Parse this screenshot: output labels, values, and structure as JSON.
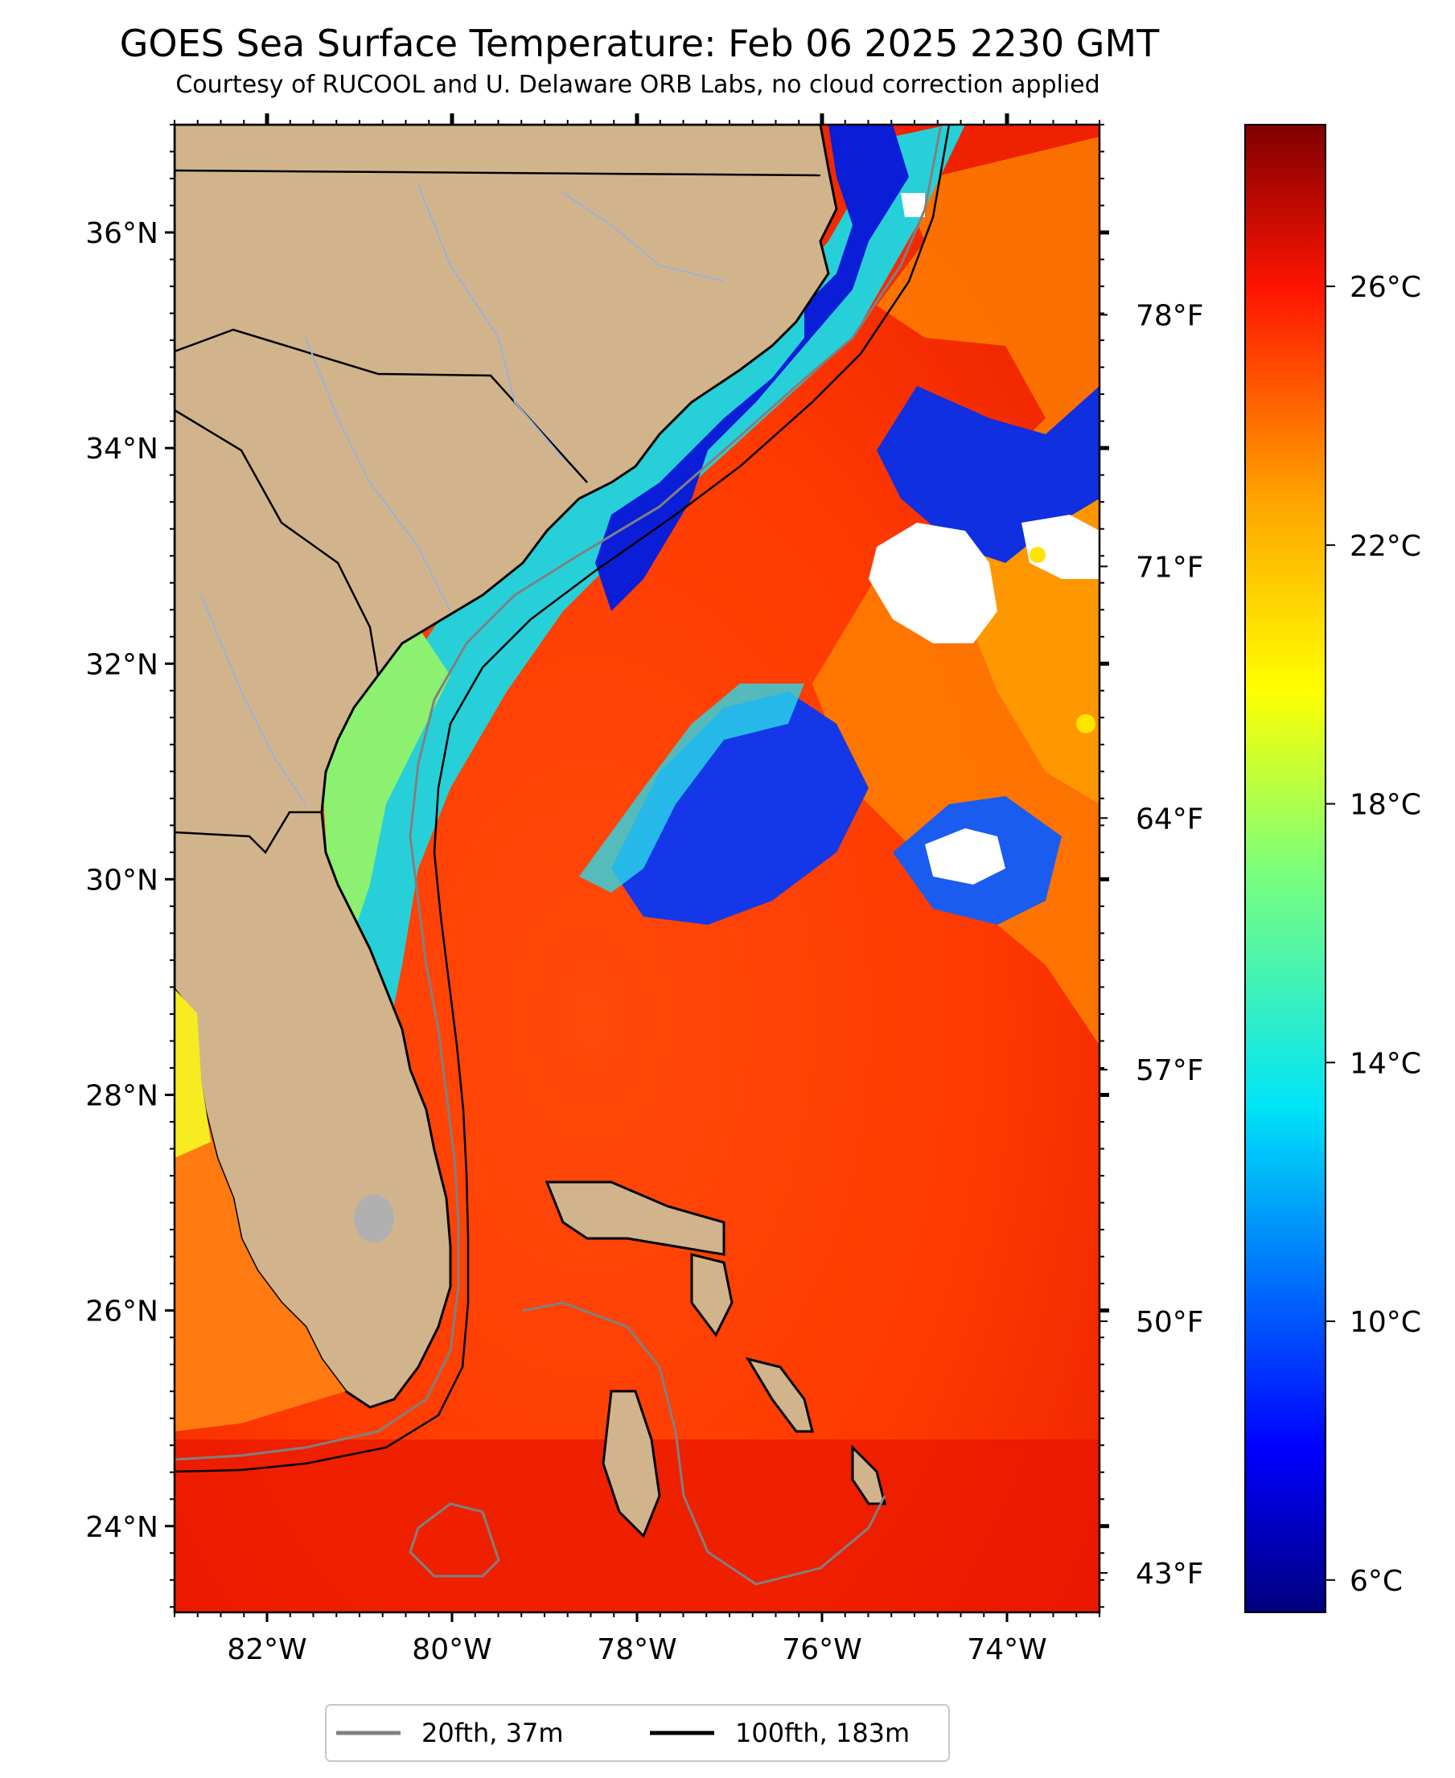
{
  "title": "GOES Sea Surface Temperature: Feb 06 2025 2230 GMT",
  "subtitle": "Courtesy of RUCOOL and U. Delaware ORB Labs, no cloud correction applied",
  "map": {
    "lon_range": [
      -83.0,
      -73.0
    ],
    "lat_range": [
      23.2,
      37.0
    ],
    "lat_ticks": [
      {
        "value": 36,
        "label": "36°N"
      },
      {
        "value": 34,
        "label": "34°N"
      },
      {
        "value": 32,
        "label": "32°N"
      },
      {
        "value": 30,
        "label": "30°N"
      },
      {
        "value": 28,
        "label": "28°N"
      },
      {
        "value": 26,
        "label": "26°N"
      },
      {
        "value": 24,
        "label": "24°N"
      }
    ],
    "lon_ticks": [
      {
        "value": -82,
        "label": "82°W"
      },
      {
        "value": -80,
        "label": "80°W"
      },
      {
        "value": -78,
        "label": "78°W"
      },
      {
        "value": -76,
        "label": "76°W"
      },
      {
        "value": -74,
        "label": "74°W"
      }
    ],
    "fahrenheit_ticks": [
      {
        "value_c": 25.56,
        "label": "78°F"
      },
      {
        "value_c": 21.67,
        "label": "71°F"
      },
      {
        "value_c": 17.78,
        "label": "64°F"
      },
      {
        "value_c": 13.89,
        "label": "57°F"
      },
      {
        "value_c": 10.0,
        "label": "50°F"
      },
      {
        "value_c": 6.11,
        "label": "43°F"
      }
    ],
    "colors": {
      "land": "#d2b48c",
      "cloud": "#ffffff",
      "depth_20fth": "#808080",
      "depth_100fth": "#000000",
      "rivers": "#9ab2d8"
    }
  },
  "colorbar": {
    "colormap": "jet",
    "range_c": [
      5.5,
      28.5
    ],
    "ticks": [
      {
        "value": 26,
        "label": "26°C"
      },
      {
        "value": 22,
        "label": "22°C"
      },
      {
        "value": 18,
        "label": "18°C"
      },
      {
        "value": 14,
        "label": "14°C"
      },
      {
        "value": 10,
        "label": "10°C"
      },
      {
        "value": 6,
        "label": "6°C"
      }
    ]
  },
  "legend": {
    "items": [
      {
        "label": "20fth, 37m",
        "color": "#808080"
      },
      {
        "label": "100fth, 183m",
        "color": "#000000"
      }
    ]
  }
}
